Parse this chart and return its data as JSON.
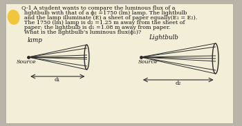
{
  "bg_color": "#b8b4a8",
  "paper_color": "#e8e4d8",
  "paper_color2": "#f2eed8",
  "highlight_color": "#f0c020",
  "title_line": "Q-1 A student wants to compare the luminous flux of a",
  "text_lines": [
    "lightbulb with that of a ϕ₂ =1750 (lm) lamp. The lightbulb",
    "and the lamp illuminate (E) a sheet of paper equally(E₁ = E₂).",
    "The 1750 (lm) lamp is d₂ =1.25 m away from the sheet of",
    "paper; the lightbulb is d₁ =1.08 m away from paper.",
    "What is the lightbulb’s luminous flux(ϕ₁)?"
  ],
  "label_lamp": "lamp",
  "label_lightbulb": "Lightbulb",
  "label_source_left": "Source",
  "label_source_right": "Source",
  "label_d1": "d₁",
  "label_d2": "d₂",
  "text_fontsize": 5.8,
  "diagram_color": "#2a2a2a"
}
